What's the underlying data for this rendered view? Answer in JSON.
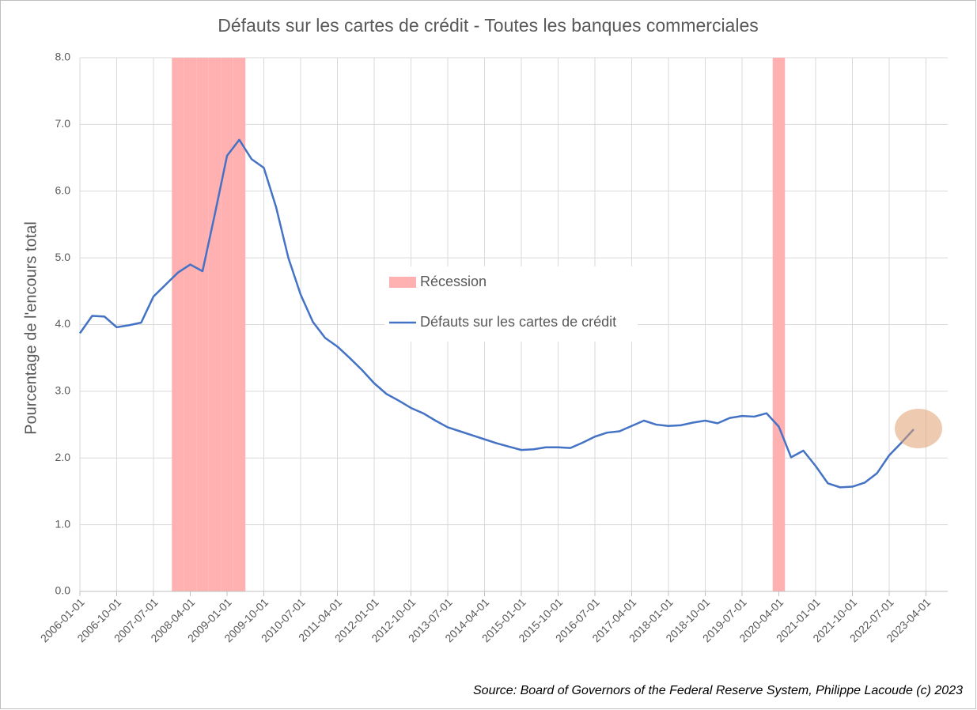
{
  "chart_data": {
    "type": "line",
    "title": "Défauts sur les cartes de crédit - Toutes les banques commerciales",
    "y_label": "Pourcentage de l'encours total",
    "source": "Source: Board of Governors of the Federal Reserve System, Philippe Lacoude (c) 2023",
    "categories": [
      "2006-01-01",
      null,
      null,
      "2006-10-01",
      null,
      null,
      "2007-07-01",
      null,
      null,
      "2008-04-01",
      null,
      null,
      "2009-01-01",
      null,
      null,
      "2009-10-01",
      null,
      null,
      "2010-07-01",
      null,
      null,
      "2011-04-01",
      null,
      null,
      "2012-01-01",
      null,
      null,
      "2012-10-01",
      null,
      null,
      "2013-07-01",
      null,
      null,
      "2014-04-01",
      null,
      null,
      "2015-01-01",
      null,
      null,
      "2015-10-01",
      null,
      null,
      "2016-07-01",
      null,
      null,
      "2017-04-01",
      null,
      null,
      "2018-01-01",
      null,
      null,
      "2018-10-01",
      null,
      null,
      "2019-07-01",
      null,
      null,
      "2020-04-01",
      null,
      null,
      "2021-01-01",
      null,
      null,
      "2021-10-01",
      null,
      null,
      "2022-07-01",
      null,
      null,
      "2023-04-01"
    ],
    "series": [
      {
        "name": "Récession",
        "type": "bar",
        "color": "#ffb0b0",
        "values": [
          null,
          null,
          null,
          null,
          null,
          null,
          null,
          null,
          8,
          8,
          8,
          8,
          8,
          8,
          null,
          null,
          null,
          null,
          null,
          null,
          null,
          null,
          null,
          null,
          null,
          null,
          null,
          null,
          null,
          null,
          null,
          null,
          null,
          null,
          null,
          null,
          null,
          null,
          null,
          null,
          null,
          null,
          null,
          null,
          null,
          null,
          null,
          null,
          null,
          null,
          null,
          null,
          null,
          null,
          null,
          null,
          null,
          8,
          null,
          null,
          null,
          null,
          null,
          null,
          null,
          null,
          null,
          null,
          null,
          null
        ]
      },
      {
        "name": "Défauts sur les cartes de crédit",
        "type": "line",
        "color": "#4472c4",
        "values": [
          3.87,
          4.13,
          4.12,
          3.96,
          3.99,
          4.03,
          4.42,
          4.6,
          4.78,
          4.9,
          4.8,
          5.65,
          6.53,
          6.77,
          6.48,
          6.35,
          5.76,
          5.0,
          4.45,
          4.04,
          3.8,
          3.67,
          3.5,
          3.32,
          3.12,
          2.96,
          2.86,
          2.75,
          2.67,
          2.56,
          2.46,
          2.4,
          2.34,
          2.28,
          2.22,
          2.17,
          2.12,
          2.13,
          2.16,
          2.16,
          2.15,
          2.23,
          2.32,
          2.38,
          2.4,
          2.48,
          2.56,
          2.5,
          2.48,
          2.49,
          2.53,
          2.56,
          2.52,
          2.6,
          2.63,
          2.62,
          2.67,
          2.47,
          2.01,
          2.11,
          1.88,
          1.62,
          1.56,
          1.57,
          1.63,
          1.77,
          2.04,
          2.23,
          2.43,
          null
        ]
      }
    ],
    "ylim": [
      0,
      8
    ],
    "yticks": [
      {
        "value": 0,
        "label": "0.0"
      },
      {
        "value": 1,
        "label": "1.0"
      },
      {
        "value": 2,
        "label": "2.0"
      },
      {
        "value": 3,
        "label": "3.0"
      },
      {
        "value": 4,
        "label": "4.0"
      },
      {
        "value": 5,
        "label": "5.0"
      },
      {
        "value": 6,
        "label": "6.0"
      },
      {
        "value": 7,
        "label": "7.0"
      },
      {
        "value": 8,
        "label": "8.0"
      }
    ],
    "grid": true
  }
}
